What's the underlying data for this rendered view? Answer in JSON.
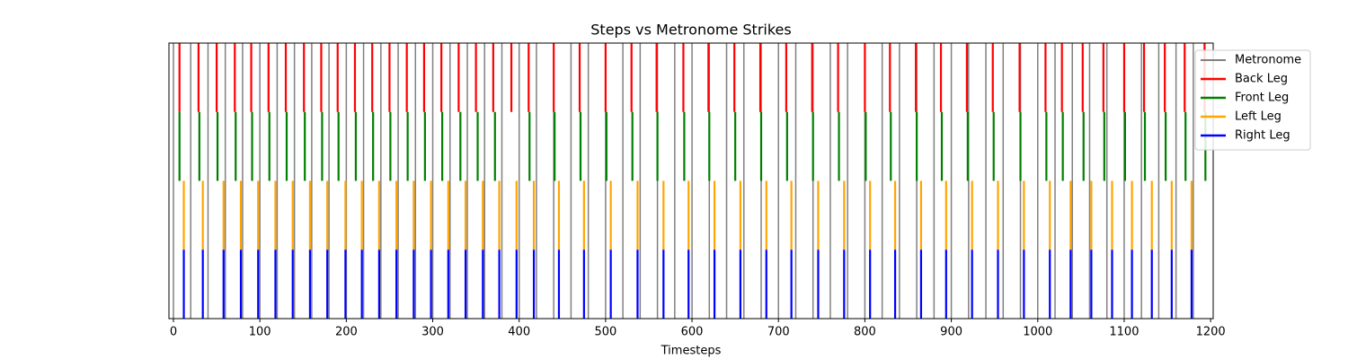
{
  "chart_data": {
    "type": "eventplot",
    "title": "Steps vs Metronome Strikes",
    "x_label": "Timesteps",
    "xlim": [
      -5.2,
      1203
    ],
    "xticks": [
      0,
      100,
      200,
      300,
      400,
      500,
      600,
      700,
      800,
      900,
      1000,
      1100,
      1200
    ],
    "legend": "upper right",
    "series": [
      {
        "name": "Metronome",
        "color": "#808080",
        "values": [
          0,
          20,
          40,
          60,
          80,
          100,
          120,
          140,
          160,
          180,
          200,
          220,
          240,
          260,
          280,
          300,
          320,
          340,
          360,
          380,
          400,
          420,
          440,
          460,
          480,
          500,
          520,
          540,
          560,
          580,
          600,
          620,
          640,
          660,
          680,
          700,
          720,
          740,
          760,
          780,
          800,
          820,
          840,
          860,
          880,
          900,
          920,
          940,
          960,
          980,
          1000,
          1020,
          1040,
          1060,
          1080,
          1100,
          1120,
          1140,
          1160,
          1180
        ]
      },
      {
        "name": "Back Leg",
        "color": "#ff0000",
        "values": [
          7,
          29,
          50,
          71,
          90,
          110,
          130,
          151,
          171,
          190,
          210,
          230,
          250,
          270,
          290,
          310,
          330,
          350,
          370,
          391,
          411,
          440,
          470,
          500,
          530,
          559,
          590,
          619,
          649,
          679,
          709,
          739,
          769,
          800,
          829,
          859,
          888,
          918,
          948,
          979,
          1009,
          1028,
          1052,
          1076,
          1100,
          1123,
          1147,
          1170,
          1193
        ]
      },
      {
        "name": "Front Leg",
        "color": "#008000",
        "values": [
          7,
          30,
          51,
          72,
          91,
          111,
          131,
          152,
          172,
          191,
          211,
          231,
          251,
          271,
          291,
          311,
          332,
          352,
          372,
          412,
          441,
          471,
          501,
          531,
          560,
          591,
          620,
          650,
          680,
          710,
          740,
          770,
          801,
          830,
          860,
          889,
          919,
          949,
          980,
          1010,
          1029,
          1053,
          1077,
          1101,
          1124,
          1148,
          1171,
          1194
        ]
      },
      {
        "name": "Left Leg",
        "color": "#ffa500",
        "values": [
          12,
          34,
          58,
          78,
          98,
          118,
          138,
          158,
          178,
          199,
          218,
          238,
          258,
          278,
          298,
          318,
          338,
          358,
          377,
          397,
          417,
          446,
          475,
          506,
          537,
          567,
          596,
          626,
          656,
          686,
          715,
          746,
          776,
          806,
          835,
          865,
          894,
          924,
          954,
          984,
          1014,
          1038,
          1062,
          1086,
          1109,
          1132,
          1155,
          1178
        ]
      },
      {
        "name": "Right Leg",
        "color": "#0000ff",
        "values": [
          12,
          34,
          58,
          78,
          98,
          118,
          138,
          158,
          178,
          199,
          218,
          238,
          258,
          278,
          298,
          318,
          338,
          358,
          377,
          397,
          417,
          446,
          475,
          506,
          537,
          567,
          596,
          626,
          656,
          686,
          715,
          746,
          776,
          806,
          835,
          865,
          894,
          924,
          954,
          984,
          1014,
          1038,
          1062,
          1086,
          1109,
          1132,
          1155,
          1178
        ]
      }
    ]
  }
}
